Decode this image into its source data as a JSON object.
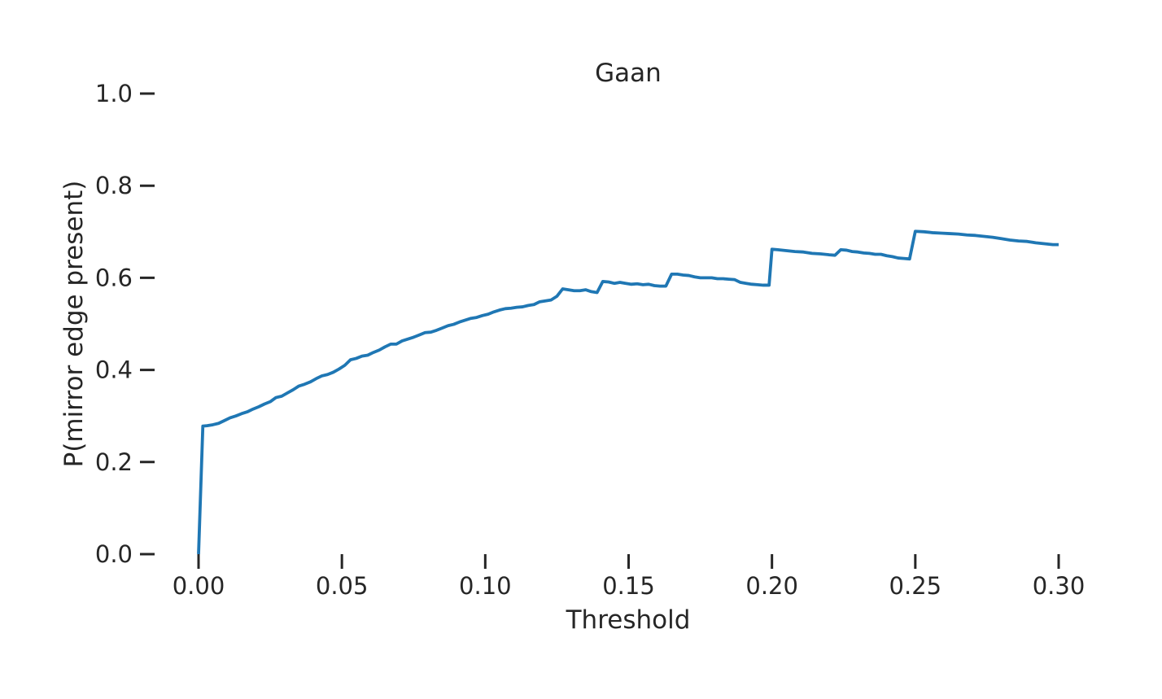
{
  "chart_data": {
    "type": "line",
    "title": "Gaan",
    "xlabel": "Threshold",
    "ylabel": "P(mirror edge present)",
    "xlim": [
      0.0,
      0.3
    ],
    "ylim": [
      0.0,
      1.0
    ],
    "xticks": [
      0.0,
      0.05,
      0.1,
      0.15,
      0.2,
      0.25,
      0.3
    ],
    "xtick_labels": [
      "0.00",
      "0.05",
      "0.10",
      "0.15",
      "0.20",
      "0.25",
      "0.30"
    ],
    "yticks": [
      0.0,
      0.2,
      0.4,
      0.6,
      0.8,
      1.0
    ],
    "ytick_labels": [
      "0.0",
      "0.2",
      "0.4",
      "0.6",
      "0.8",
      "1.0"
    ],
    "grid": false,
    "line_color": "#1f77b4",
    "series": [
      {
        "name": "Gaan",
        "x": [
          0.0,
          0.0015,
          0.003,
          0.005,
          0.007,
          0.009,
          0.011,
          0.013,
          0.015,
          0.017,
          0.019,
          0.021,
          0.023,
          0.025,
          0.027,
          0.029,
          0.031,
          0.033,
          0.035,
          0.037,
          0.039,
          0.041,
          0.043,
          0.045,
          0.047,
          0.049,
          0.051,
          0.053,
          0.055,
          0.057,
          0.059,
          0.061,
          0.063,
          0.065,
          0.067,
          0.069,
          0.071,
          0.073,
          0.075,
          0.077,
          0.079,
          0.081,
          0.083,
          0.085,
          0.087,
          0.089,
          0.091,
          0.093,
          0.095,
          0.097,
          0.099,
          0.101,
          0.103,
          0.105,
          0.107,
          0.109,
          0.111,
          0.113,
          0.115,
          0.117,
          0.119,
          0.121,
          0.123,
          0.125,
          0.127,
          0.129,
          0.131,
          0.133,
          0.135,
          0.137,
          0.139,
          0.141,
          0.143,
          0.145,
          0.147,
          0.149,
          0.151,
          0.153,
          0.155,
          0.157,
          0.159,
          0.161,
          0.163,
          0.165,
          0.167,
          0.169,
          0.171,
          0.173,
          0.175,
          0.177,
          0.179,
          0.181,
          0.183,
          0.185,
          0.187,
          0.189,
          0.191,
          0.193,
          0.195,
          0.197,
          0.199,
          0.2,
          0.202,
          0.205,
          0.208,
          0.211,
          0.214,
          0.217,
          0.22,
          0.222,
          0.224,
          0.226,
          0.228,
          0.23,
          0.232,
          0.234,
          0.236,
          0.238,
          0.24,
          0.242,
          0.244,
          0.246,
          0.248,
          0.25,
          0.253,
          0.256,
          0.259,
          0.262,
          0.265,
          0.268,
          0.271,
          0.274,
          0.277,
          0.28,
          0.283,
          0.286,
          0.289,
          0.292,
          0.295,
          0.298,
          0.3
        ],
        "values": [
          0.0,
          0.278,
          0.279,
          0.281,
          0.284,
          0.29,
          0.296,
          0.3,
          0.305,
          0.309,
          0.315,
          0.32,
          0.326,
          0.331,
          0.34,
          0.343,
          0.35,
          0.357,
          0.365,
          0.369,
          0.374,
          0.381,
          0.387,
          0.39,
          0.395,
          0.402,
          0.41,
          0.422,
          0.425,
          0.43,
          0.432,
          0.438,
          0.443,
          0.45,
          0.456,
          0.456,
          0.463,
          0.467,
          0.471,
          0.476,
          0.481,
          0.482,
          0.486,
          0.491,
          0.496,
          0.499,
          0.504,
          0.508,
          0.512,
          0.514,
          0.518,
          0.521,
          0.526,
          0.53,
          0.533,
          0.534,
          0.536,
          0.537,
          0.54,
          0.542,
          0.548,
          0.55,
          0.552,
          0.56,
          0.576,
          0.574,
          0.572,
          0.572,
          0.574,
          0.57,
          0.568,
          0.592,
          0.591,
          0.588,
          0.59,
          0.588,
          0.586,
          0.587,
          0.585,
          0.586,
          0.583,
          0.582,
          0.582,
          0.608,
          0.608,
          0.606,
          0.605,
          0.602,
          0.6,
          0.6,
          0.6,
          0.598,
          0.598,
          0.597,
          0.596,
          0.59,
          0.588,
          0.586,
          0.585,
          0.584,
          0.584,
          0.662,
          0.661,
          0.659,
          0.657,
          0.656,
          0.653,
          0.652,
          0.65,
          0.649,
          0.661,
          0.66,
          0.657,
          0.656,
          0.654,
          0.653,
          0.651,
          0.651,
          0.648,
          0.646,
          0.643,
          0.642,
          0.641,
          0.701,
          0.7,
          0.698,
          0.697,
          0.696,
          0.695,
          0.693,
          0.692,
          0.69,
          0.688,
          0.685,
          0.682,
          0.68,
          0.679,
          0.676,
          0.674,
          0.672,
          0.672
        ]
      }
    ]
  }
}
